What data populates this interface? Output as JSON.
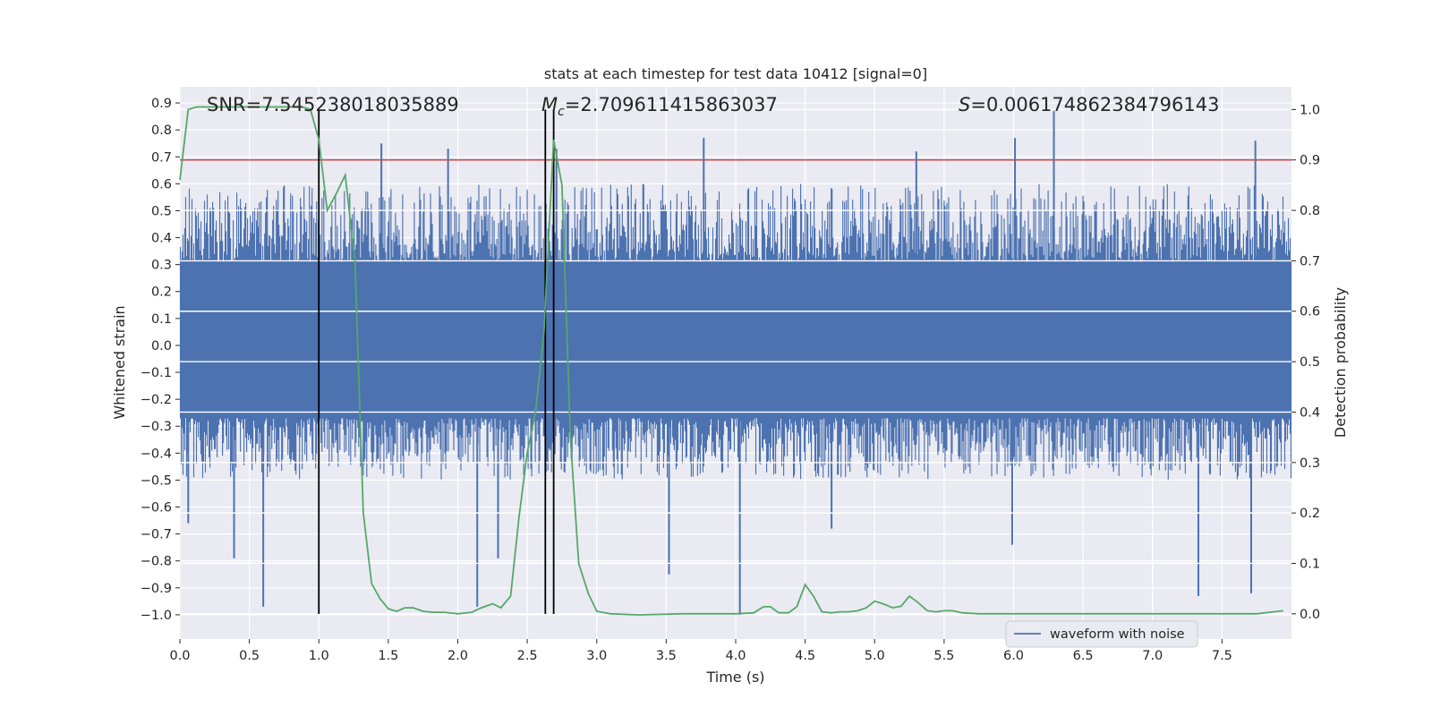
{
  "chart_data": {
    "type": "line",
    "title": "stats at each timestep for test data 10412 [signal=0]",
    "xlabel": "Time (s)",
    "ylabel_left": "Whitened strain",
    "ylabel_right": "Detection probability",
    "xlim": [
      0,
      8.0
    ],
    "ylim_left": [
      -1.09,
      0.96
    ],
    "ylim_right": [
      -0.05,
      1.045
    ],
    "x_ticks": [
      0.0,
      0.5,
      1.0,
      1.5,
      2.0,
      2.5,
      3.0,
      3.5,
      4.0,
      4.5,
      5.0,
      5.5,
      6.0,
      6.5,
      7.0,
      7.5
    ],
    "x_tick_labels": [
      "0.0",
      "0.5",
      "1.0",
      "1.5",
      "2.0",
      "2.5",
      "3.0",
      "3.5",
      "4.0",
      "4.5",
      "5.0",
      "5.5",
      "6.0",
      "6.5",
      "7.0",
      "7.5"
    ],
    "y_left_ticks": [
      0.9,
      0.8,
      0.7,
      0.6,
      0.5,
      0.4,
      0.3,
      0.2,
      0.1,
      0.0,
      -0.1,
      -0.2,
      -0.3,
      -0.4,
      -0.5,
      -0.6,
      -0.7,
      -0.8,
      -0.9,
      -1.0
    ],
    "y_left_tick_labels": [
      "0.9",
      "0.8",
      "0.7",
      "0.6",
      "0.5",
      "0.4",
      "0.3",
      "0.2",
      "0.1",
      "0.0",
      "−0.1",
      "−0.2",
      "−0.3",
      "−0.4",
      "−0.5",
      "−0.6",
      "−0.7",
      "−0.8",
      "−0.9",
      "−1.0"
    ],
    "y_right_ticks": [
      1.0,
      0.9,
      0.8,
      0.7,
      0.6,
      0.5,
      0.4,
      0.3,
      0.2,
      0.1,
      0.0
    ],
    "y_right_tick_labels": [
      "1.0",
      "0.9",
      "0.8",
      "0.7",
      "0.6",
      "0.5",
      "0.4",
      "0.3",
      "0.2",
      "0.1",
      "0.0"
    ],
    "grid": true,
    "legend": {
      "placement": "lower-right",
      "entries": [
        "waveform with noise"
      ]
    },
    "annotations": {
      "snr": "SNR=7.545238018035889",
      "mc_symbol": "M",
      "mc_subscript": "c",
      "mc_value": "=2.709611415863037",
      "s_symbol": "S",
      "s_value": "=0.006174862384796143"
    },
    "threshold_line": {
      "axis": "right",
      "y": 0.9,
      "color": "#c44e52"
    },
    "vertical_lines_x": [
      1.0,
      2.63,
      2.69
    ],
    "waveform": {
      "name": "waveform with noise",
      "axis": "left",
      "color": "#4c72b0",
      "core_amplitude": [
        -0.27,
        0.31
      ],
      "envelope_amplitude": [
        -0.5,
        0.6
      ],
      "spikes": [
        {
          "x": 0.06,
          "y": -0.66
        },
        {
          "x": 0.39,
          "y": -0.79
        },
        {
          "x": 0.6,
          "y": -0.97
        },
        {
          "x": 1.45,
          "y": 0.75
        },
        {
          "x": 1.93,
          "y": 0.73
        },
        {
          "x": 2.14,
          "y": -0.97
        },
        {
          "x": 2.29,
          "y": -0.79
        },
        {
          "x": 3.52,
          "y": -0.85
        },
        {
          "x": 3.77,
          "y": 0.77
        },
        {
          "x": 4.03,
          "y": -1.0
        },
        {
          "x": 4.69,
          "y": -0.68
        },
        {
          "x": 5.99,
          "y": -0.74
        },
        {
          "x": 6.01,
          "y": 0.77
        },
        {
          "x": 6.29,
          "y": 0.87
        },
        {
          "x": 7.33,
          "y": -0.93
        },
        {
          "x": 7.71,
          "y": -0.92
        },
        {
          "x": 7.74,
          "y": 0.76
        },
        {
          "x": 5.3,
          "y": 0.72
        },
        {
          "x": 2.71,
          "y": 0.73
        }
      ],
      "color_hint": "blue"
    },
    "detection_probability": {
      "axis": "right",
      "color": "#55a868",
      "x": [
        0.0,
        0.06,
        0.12,
        0.2,
        0.3,
        0.4,
        0.5,
        0.6,
        0.7,
        0.8,
        0.88,
        0.94,
        1.0,
        1.06,
        1.12,
        1.19,
        1.26,
        1.32,
        1.38,
        1.44,
        1.5,
        1.56,
        1.62,
        1.68,
        1.75,
        1.82,
        1.9,
        2.0,
        2.1,
        2.17,
        2.25,
        2.31,
        2.38,
        2.44,
        2.5,
        2.56,
        2.62,
        2.69,
        2.75,
        2.81,
        2.87,
        2.94,
        3.0,
        3.1,
        3.3,
        3.6,
        4.0,
        4.13,
        4.2,
        4.25,
        4.31,
        4.38,
        4.44,
        4.5,
        4.56,
        4.62,
        4.69,
        4.75,
        4.81,
        4.88,
        4.94,
        5.0,
        5.06,
        5.13,
        5.19,
        5.25,
        5.31,
        5.38,
        5.44,
        5.5,
        5.56,
        5.63,
        5.75,
        6.0,
        6.5,
        7.0,
        7.5,
        7.75,
        7.94
      ],
      "y": [
        0.86,
        1.0,
        1.005,
        1.005,
        1.005,
        1.005,
        1.005,
        1.005,
        1.005,
        1.005,
        1.005,
        1.0,
        0.94,
        0.8,
        0.83,
        0.87,
        0.7,
        0.2,
        0.06,
        0.03,
        0.01,
        0.005,
        0.012,
        0.012,
        0.005,
        0.003,
        0.003,
        0.0,
        0.003,
        0.012,
        0.02,
        0.012,
        0.035,
        0.19,
        0.32,
        0.4,
        0.56,
        0.94,
        0.85,
        0.35,
        0.1,
        0.04,
        0.005,
        0.0,
        -0.002,
        0.0,
        0.0,
        0.002,
        0.014,
        0.014,
        0.002,
        0.002,
        0.014,
        0.058,
        0.035,
        0.004,
        0.002,
        0.004,
        0.004,
        0.006,
        0.012,
        0.025,
        0.02,
        0.012,
        0.015,
        0.035,
        0.023,
        0.006,
        0.004,
        0.006,
        0.006,
        0.002,
        0.0,
        0.0,
        0.0,
        0.0,
        0.0,
        0.0,
        0.006
      ]
    }
  }
}
